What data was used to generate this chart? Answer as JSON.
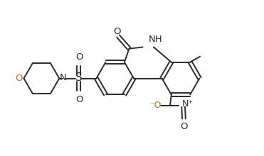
{
  "bg_color": "#ffffff",
  "bond_color": "#2a2a2a",
  "O_color": "#b8730a",
  "figsize": [
    3.71,
    2.2
  ],
  "dpi": 100,
  "xlim": [
    0,
    10
  ],
  "ylim": [
    0,
    5.93
  ]
}
